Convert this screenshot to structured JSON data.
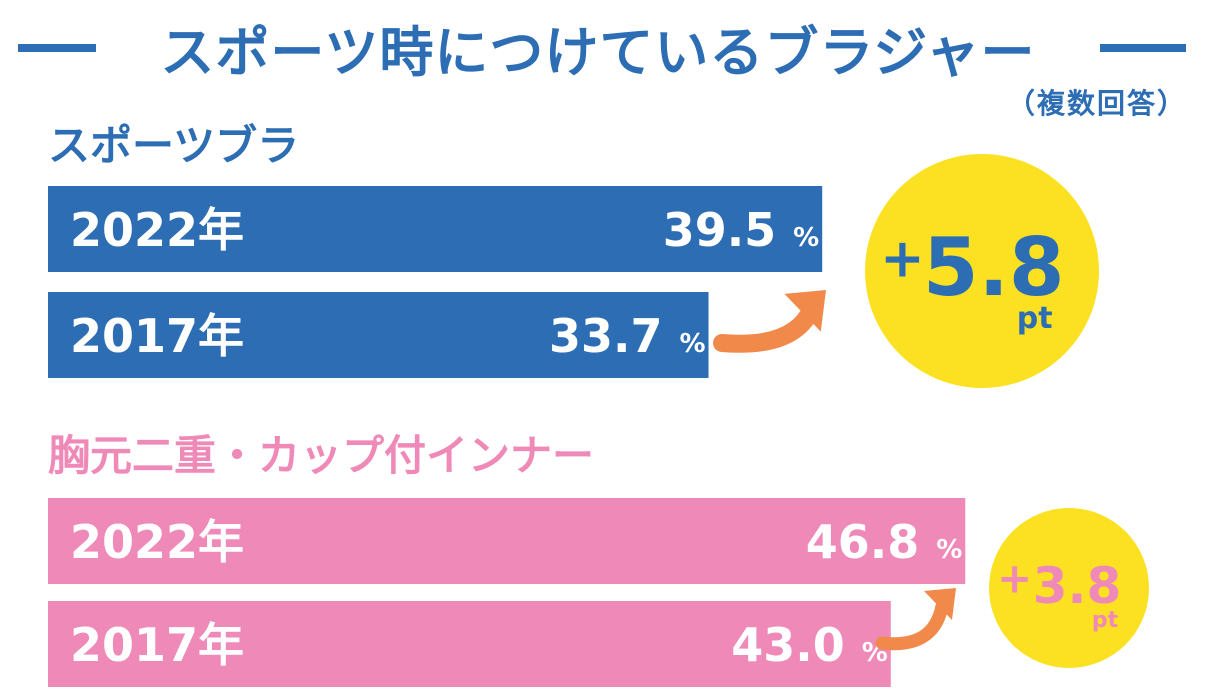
{
  "title": "スポーツ時につけているブラジャー",
  "note": "（複数回答）",
  "colors": {
    "title": "#2c6db4",
    "sports_bar": "#2c6db4",
    "inner_bar": "#ef8ab8",
    "circle": "#fbe122",
    "arrow": "#f1894a",
    "bar_text": "#ffffff"
  },
  "chart_data": [
    {
      "type": "bar",
      "title": "スポーツブラ",
      "categories": [
        "2022年",
        "2017年"
      ],
      "values": [
        39.5,
        33.7
      ],
      "value_labels": [
        "39.5",
        "33.7"
      ],
      "unit": "%",
      "change": {
        "sign": "+",
        "value": "5.8",
        "unit": "pt"
      }
    },
    {
      "type": "bar",
      "title": "胸元二重・カップ付インナー",
      "categories": [
        "2022年",
        "2017年"
      ],
      "values": [
        46.8,
        43.0
      ],
      "value_labels": [
        "46.8",
        "43.0"
      ],
      "unit": "%",
      "change": {
        "sign": "+",
        "value": "3.8",
        "unit": "pt"
      }
    }
  ]
}
